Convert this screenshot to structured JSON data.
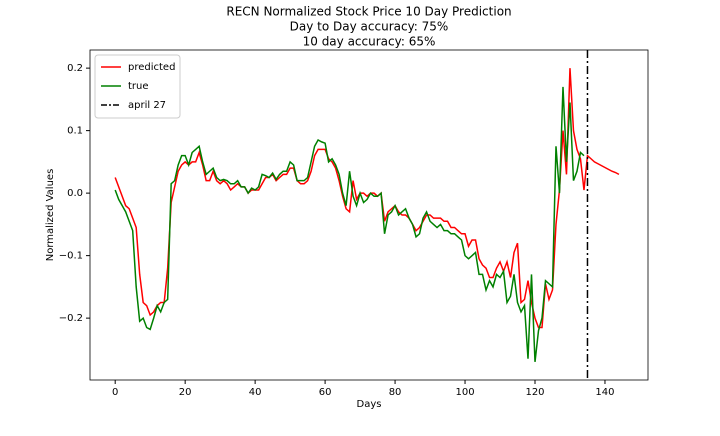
{
  "chart_data": {
    "type": "line",
    "title": "RECN Normalized Stock Price 10 Day Prediction",
    "subtitles": [
      "Day to Day accuracy: 75%",
      "10 day accuracy: 65%"
    ],
    "xlabel": "Days",
    "ylabel": "Normalized Values",
    "x": [
      0,
      1,
      2,
      3,
      4,
      5,
      6,
      7,
      8,
      9,
      10,
      11,
      12,
      13,
      14,
      15,
      16,
      17,
      18,
      19,
      20,
      21,
      22,
      23,
      24,
      25,
      26,
      27,
      28,
      29,
      30,
      31,
      32,
      33,
      34,
      35,
      36,
      37,
      38,
      39,
      40,
      41,
      42,
      43,
      44,
      45,
      46,
      47,
      48,
      49,
      50,
      51,
      52,
      53,
      54,
      55,
      56,
      57,
      58,
      59,
      60,
      61,
      62,
      63,
      64,
      65,
      66,
      67,
      68,
      69,
      70,
      71,
      72,
      73,
      74,
      75,
      76,
      77,
      78,
      79,
      80,
      81,
      82,
      83,
      84,
      85,
      86,
      87,
      88,
      89,
      90,
      91,
      92,
      93,
      94,
      95,
      96,
      97,
      98,
      99,
      100,
      101,
      102,
      103,
      104,
      105,
      106,
      107,
      108,
      109,
      110,
      111,
      112,
      113,
      114,
      115,
      116,
      117,
      118,
      119,
      120,
      121,
      122,
      123,
      124,
      125,
      126,
      127,
      128,
      129,
      130,
      131,
      132,
      133,
      134,
      135,
      136,
      137,
      138,
      139,
      140,
      141,
      142,
      143,
      144
    ],
    "series": [
      {
        "name": "predicted",
        "color": "#ff0000",
        "values": [
          0.025,
          0.01,
          -0.005,
          -0.02,
          -0.025,
          -0.04,
          -0.055,
          -0.13,
          -0.175,
          -0.18,
          -0.195,
          -0.19,
          -0.18,
          -0.175,
          -0.175,
          -0.12,
          -0.015,
          0.01,
          0.035,
          0.045,
          0.05,
          0.045,
          0.05,
          0.05,
          0.065,
          0.045,
          0.02,
          0.02,
          0.035,
          0.02,
          0.015,
          0.02,
          0.015,
          0.005,
          0.01,
          0.015,
          0.01,
          0.01,
          0.0,
          0.005,
          0.005,
          0.005,
          0.015,
          0.025,
          0.025,
          0.03,
          0.02,
          0.025,
          0.03,
          0.03,
          0.04,
          0.04,
          0.02,
          0.015,
          0.015,
          0.02,
          0.035,
          0.06,
          0.07,
          0.07,
          0.07,
          0.055,
          0.05,
          0.04,
          0.02,
          -0.005,
          -0.025,
          -0.03,
          0.02,
          -0.01,
          0.0,
          0.0,
          -0.005,
          0.0,
          0.0,
          -0.005,
          0.0,
          -0.045,
          -0.03,
          -0.025,
          -0.02,
          -0.03,
          -0.035,
          -0.035,
          -0.04,
          -0.05,
          -0.06,
          -0.055,
          -0.045,
          -0.035,
          -0.035,
          -0.04,
          -0.04,
          -0.04,
          -0.045,
          -0.045,
          -0.055,
          -0.055,
          -0.06,
          -0.065,
          -0.065,
          -0.085,
          -0.075,
          -0.075,
          -0.105,
          -0.115,
          -0.12,
          -0.135,
          -0.135,
          -0.12,
          -0.11,
          -0.125,
          -0.11,
          -0.135,
          -0.095,
          -0.08,
          -0.175,
          -0.17,
          -0.14,
          -0.175,
          -0.2,
          -0.215,
          -0.215,
          -0.145,
          -0.17,
          -0.155,
          -0.05,
          0.005,
          0.1,
          0.03,
          0.2,
          0.1,
          0.07,
          0.055,
          0.005,
          0.06,
          0.055,
          0.05,
          0.047,
          0.044,
          0.041,
          0.038,
          0.035,
          0.033,
          0.03
        ]
      },
      {
        "name": "true",
        "color": "#008000",
        "values": [
          0.005,
          -0.01,
          -0.02,
          -0.03,
          -0.045,
          -0.06,
          -0.15,
          -0.205,
          -0.2,
          -0.215,
          -0.218,
          -0.2,
          -0.18,
          -0.19,
          -0.175,
          -0.17,
          0.015,
          0.02,
          0.045,
          0.06,
          0.06,
          0.045,
          0.065,
          0.07,
          0.075,
          0.05,
          0.03,
          0.035,
          0.04,
          0.025,
          0.02,
          0.022,
          0.02,
          0.015,
          0.015,
          0.02,
          0.01,
          0.01,
          0.0,
          0.008,
          0.005,
          0.01,
          0.03,
          0.028,
          0.025,
          0.032,
          0.022,
          0.03,
          0.035,
          0.035,
          0.05,
          0.045,
          0.02,
          0.02,
          0.02,
          0.025,
          0.05,
          0.075,
          0.085,
          0.082,
          0.08,
          0.05,
          0.055,
          0.045,
          0.03,
          0.0,
          -0.02,
          0.035,
          -0.005,
          -0.02,
          0.0,
          -0.015,
          -0.01,
          0.0,
          -0.005,
          -0.005,
          0.0,
          -0.065,
          -0.035,
          -0.03,
          -0.02,
          -0.035,
          -0.03,
          -0.025,
          -0.04,
          -0.05,
          -0.07,
          -0.065,
          -0.04,
          -0.03,
          -0.045,
          -0.05,
          -0.055,
          -0.05,
          -0.06,
          -0.06,
          -0.065,
          -0.065,
          -0.07,
          -0.075,
          -0.1,
          -0.105,
          -0.1,
          -0.095,
          -0.13,
          -0.13,
          -0.155,
          -0.14,
          -0.15,
          -0.13,
          -0.135,
          -0.125,
          -0.175,
          -0.165,
          -0.13,
          -0.175,
          -0.19,
          -0.18,
          -0.265,
          -0.13,
          -0.27,
          -0.22,
          -0.2,
          -0.14,
          -0.145,
          -0.15,
          0.075,
          0.0,
          0.17,
          0.05,
          0.145,
          0.02,
          0.035,
          0.065,
          0.06,
          null,
          null,
          null,
          null,
          null,
          null,
          null,
          null,
          null,
          null
        ]
      }
    ],
    "vlines": [
      {
        "name": "april 27",
        "x": 135,
        "color": "#000000"
      }
    ],
    "xlim": [
      -7.2,
      152.3
    ],
    "ylim": [
      -0.299,
      0.229
    ],
    "xticks": [
      0,
      20,
      40,
      60,
      80,
      100,
      120,
      140
    ],
    "yticks": [
      {
        "value": -0.2,
        "label": "−0.2"
      },
      {
        "value": -0.1,
        "label": "−0.1"
      },
      {
        "value": 0,
        "label": "0.0"
      },
      0.1,
      0.2
    ],
    "legend": "upper left"
  }
}
